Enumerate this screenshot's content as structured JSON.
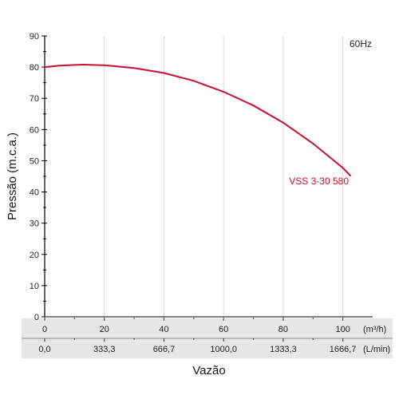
{
  "chart_data": {
    "type": "line",
    "ylabel": "Pressão (m.c.a.)",
    "xlabel": "Vazão",
    "ylim": [
      0,
      90
    ],
    "yticks": [
      "0",
      "10",
      "20",
      "30",
      "40",
      "50",
      "60",
      "70",
      "80",
      "90"
    ],
    "xlim": [
      0,
      110
    ],
    "grid": true,
    "frequency": "60Hz",
    "x_axes": [
      {
        "unit": "(m³/h)",
        "ticks": [
          0,
          20,
          40,
          60,
          80,
          100
        ],
        "tick_labels": [
          "0",
          "20",
          "40",
          "60",
          "80",
          "100"
        ]
      },
      {
        "unit": "(L/min)",
        "ticks": [
          0,
          20,
          40,
          60,
          80,
          100
        ],
        "tick_labels": [
          "0,0",
          "333,3",
          "666,7",
          "1000,0",
          "1333,3",
          "1666,7"
        ]
      }
    ],
    "series": [
      {
        "name": "VSS 3-30 580",
        "color": "#c8102e",
        "x": [
          0,
          5,
          10,
          13,
          20,
          30,
          40,
          50,
          60,
          70,
          80,
          90,
          100,
          102.6
        ],
        "y": [
          80,
          80.5,
          80.7,
          80.8,
          80.6,
          79.7,
          78.1,
          75.6,
          72.1,
          67.7,
          62.2,
          55.5,
          47.7,
          45.1
        ]
      }
    ]
  }
}
